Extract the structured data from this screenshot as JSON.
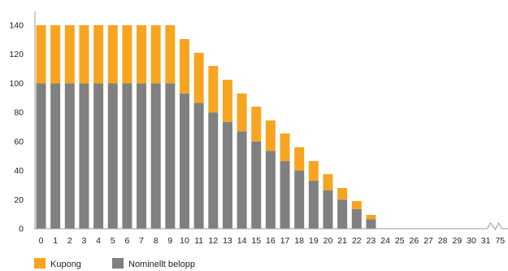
{
  "chart_data": {
    "type": "bar",
    "stacked": true,
    "categories": [
      "0",
      "1",
      "2",
      "3",
      "4",
      "5",
      "6",
      "7",
      "8",
      "9",
      "10",
      "11",
      "12",
      "13",
      "14",
      "15",
      "16",
      "17",
      "18",
      "19",
      "20",
      "21",
      "22",
      "23",
      "24",
      "25",
      "26",
      "27",
      "28",
      "29",
      "30",
      "31",
      "75"
    ],
    "series": [
      {
        "name": "Nominellt belopp",
        "color": "#808080",
        "values": [
          100,
          100,
          100,
          100,
          100,
          100,
          100,
          100,
          100,
          100,
          93,
          86.5,
          80,
          73.5,
          67,
          60,
          53.5,
          46.5,
          40,
          33,
          26.5,
          20,
          13.5,
          6.5,
          0,
          0,
          0,
          0,
          0,
          0,
          0,
          0,
          0
        ]
      },
      {
        "name": "Kupong",
        "color": "#F7A521",
        "values": [
          40,
          40,
          40,
          40,
          40,
          40,
          40,
          40,
          40,
          40,
          37.5,
          34.5,
          32,
          29,
          26,
          24,
          21,
          19,
          16,
          13.5,
          11,
          8,
          5.5,
          3,
          0,
          0,
          0,
          0,
          0,
          0,
          0,
          0,
          0
        ]
      }
    ],
    "ylim": [
      0,
      140
    ],
    "yticks": [
      0,
      20,
      40,
      60,
      80,
      100,
      120,
      140
    ],
    "grid": false,
    "axis_break_between": [
      "31",
      "75"
    ],
    "legend_position": "bottom-left",
    "title": "",
    "xlabel": "",
    "ylabel": ""
  },
  "colors": {
    "axis": "#999999"
  }
}
